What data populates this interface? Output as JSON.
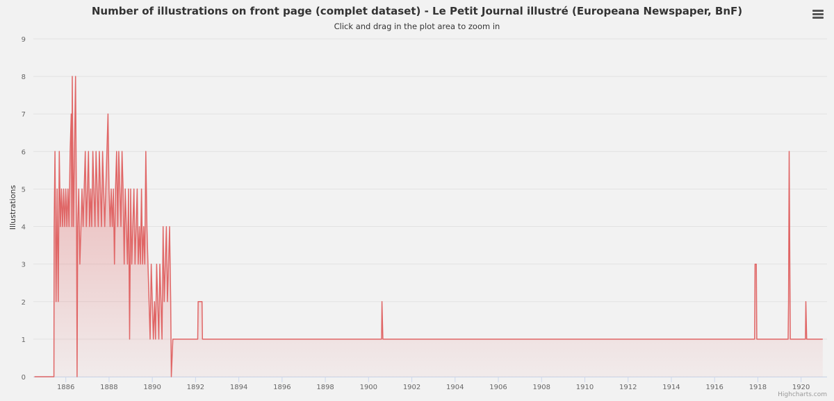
{
  "chart_data": {
    "type": "area",
    "title": "Number of illustrations on front page (complet dataset) - Le Petit Journal illustré (Europeana Newspaper, BnF)",
    "subtitle": "Click and drag in the plot area to zoom in",
    "ylabel": "Illustrations",
    "xlabel": "",
    "xlim": [
      1884.5,
      1921.2
    ],
    "ylim": [
      0,
      9
    ],
    "x_ticks": [
      "1886",
      "1888",
      "1890",
      "1892",
      "1894",
      "1896",
      "1898",
      "1900",
      "1902",
      "1904",
      "1906",
      "1908",
      "1910",
      "1912",
      "1914",
      "1916",
      "1918",
      "1920"
    ],
    "y_ticks": [
      "0",
      "1",
      "2",
      "3",
      "4",
      "5",
      "6",
      "7",
      "8",
      "9"
    ],
    "grid": true,
    "legend": "none",
    "color": "#e06666",
    "series": [
      {
        "values": [
          [
            1884.55,
            0
          ],
          [
            1885.45,
            0
          ],
          [
            1885.46,
            4
          ],
          [
            1885.5,
            6
          ],
          [
            1885.55,
            2
          ],
          [
            1885.6,
            5
          ],
          [
            1885.65,
            2
          ],
          [
            1885.7,
            6
          ],
          [
            1885.75,
            4
          ],
          [
            1885.8,
            5
          ],
          [
            1885.85,
            4
          ],
          [
            1885.9,
            5
          ],
          [
            1885.95,
            4
          ],
          [
            1886.0,
            5
          ],
          [
            1886.05,
            4
          ],
          [
            1886.1,
            5
          ],
          [
            1886.15,
            4
          ],
          [
            1886.2,
            6
          ],
          [
            1886.25,
            7
          ],
          [
            1886.28,
            4
          ],
          [
            1886.3,
            8
          ],
          [
            1886.35,
            4
          ],
          [
            1886.4,
            6
          ],
          [
            1886.45,
            8
          ],
          [
            1886.5,
            4
          ],
          [
            1886.52,
            0
          ],
          [
            1886.55,
            4
          ],
          [
            1886.6,
            5
          ],
          [
            1886.65,
            3
          ],
          [
            1886.7,
            4
          ],
          [
            1886.75,
            5
          ],
          [
            1886.8,
            4
          ],
          [
            1886.85,
            5
          ],
          [
            1886.9,
            6
          ],
          [
            1886.95,
            4
          ],
          [
            1887.0,
            5
          ],
          [
            1887.05,
            6
          ],
          [
            1887.1,
            4
          ],
          [
            1887.15,
            5
          ],
          [
            1887.2,
            4
          ],
          [
            1887.25,
            6
          ],
          [
            1887.3,
            5
          ],
          [
            1887.35,
            4
          ],
          [
            1887.4,
            6
          ],
          [
            1887.45,
            5
          ],
          [
            1887.5,
            4
          ],
          [
            1887.55,
            6
          ],
          [
            1887.6,
            5
          ],
          [
            1887.65,
            4
          ],
          [
            1887.7,
            6
          ],
          [
            1887.75,
            5
          ],
          [
            1887.8,
            4
          ],
          [
            1887.85,
            5
          ],
          [
            1887.9,
            6
          ],
          [
            1887.95,
            7
          ],
          [
            1888.0,
            5
          ],
          [
            1888.05,
            4
          ],
          [
            1888.1,
            5
          ],
          [
            1888.15,
            4
          ],
          [
            1888.2,
            5
          ],
          [
            1888.25,
            3
          ],
          [
            1888.3,
            5
          ],
          [
            1888.35,
            6
          ],
          [
            1888.4,
            4
          ],
          [
            1888.45,
            6
          ],
          [
            1888.5,
            5
          ],
          [
            1888.55,
            4
          ],
          [
            1888.6,
            6
          ],
          [
            1888.65,
            5
          ],
          [
            1888.7,
            3
          ],
          [
            1888.75,
            5
          ],
          [
            1888.8,
            4
          ],
          [
            1888.85,
            3
          ],
          [
            1888.9,
            5
          ],
          [
            1888.95,
            1
          ],
          [
            1889.0,
            5
          ],
          [
            1889.05,
            3
          ],
          [
            1889.1,
            4
          ],
          [
            1889.15,
            5
          ],
          [
            1889.2,
            3
          ],
          [
            1889.25,
            4
          ],
          [
            1889.3,
            5
          ],
          [
            1889.35,
            3
          ],
          [
            1889.4,
            4
          ],
          [
            1889.45,
            3
          ],
          [
            1889.5,
            5
          ],
          [
            1889.55,
            3
          ],
          [
            1889.6,
            4
          ],
          [
            1889.65,
            3
          ],
          [
            1889.7,
            6
          ],
          [
            1889.75,
            4
          ],
          [
            1889.8,
            3
          ],
          [
            1889.85,
            2
          ],
          [
            1889.9,
            1
          ],
          [
            1889.95,
            3
          ],
          [
            1890.0,
            2
          ],
          [
            1890.05,
            1
          ],
          [
            1890.1,
            2
          ],
          [
            1890.15,
            1
          ],
          [
            1890.2,
            3
          ],
          [
            1890.25,
            2
          ],
          [
            1890.3,
            1
          ],
          [
            1890.35,
            3
          ],
          [
            1890.4,
            2
          ],
          [
            1890.45,
            1
          ],
          [
            1890.5,
            4
          ],
          [
            1890.55,
            2
          ],
          [
            1890.6,
            3
          ],
          [
            1890.65,
            4
          ],
          [
            1890.7,
            2
          ],
          [
            1890.75,
            3
          ],
          [
            1890.8,
            4
          ],
          [
            1890.85,
            2
          ],
          [
            1890.88,
            0
          ],
          [
            1890.95,
            1
          ],
          [
            1892.1,
            1
          ],
          [
            1892.12,
            2
          ],
          [
            1892.3,
            2
          ],
          [
            1892.32,
            1
          ],
          [
            1900.6,
            1
          ],
          [
            1900.62,
            2
          ],
          [
            1900.66,
            1
          ],
          [
            1917.85,
            1
          ],
          [
            1917.87,
            3
          ],
          [
            1917.93,
            3
          ],
          [
            1917.95,
            1
          ],
          [
            1919.4,
            1
          ],
          [
            1919.42,
            2
          ],
          [
            1919.45,
            6
          ],
          [
            1919.5,
            1
          ],
          [
            1920.2,
            1
          ],
          [
            1920.22,
            2
          ],
          [
            1920.26,
            1
          ],
          [
            1921.0,
            1
          ]
        ]
      }
    ]
  },
  "credits": "Highcharts.com",
  "menu_icon": "hamburger-menu-icon"
}
